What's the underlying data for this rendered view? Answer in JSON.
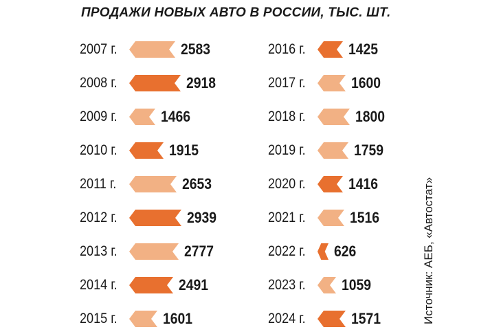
{
  "chart_data": {
    "type": "bar",
    "title": "ПРОДАЖИ НОВЫХ АВТО В РОССИИ, ТЫС. ШТ.",
    "source": "Источник: АЕБ, «Автостат»",
    "colors": {
      "high": "#e8702f",
      "low": "#f2b184"
    },
    "categories": [
      "2007 г.",
      "2008 г.",
      "2009 г.",
      "2010 г.",
      "2011 г.",
      "2012 г.",
      "2013 г.",
      "2014 г.",
      "2015 г.",
      "2016 г.",
      "2017 г.",
      "2018 г.",
      "2019 г.",
      "2020 г.",
      "2021 г.",
      "2022 г.",
      "2023 г.",
      "2024 г."
    ],
    "values": [
      2583,
      2918,
      1466,
      1915,
      2653,
      2939,
      2777,
      2491,
      1601,
      1425,
      1600,
      1800,
      1759,
      1416,
      1516,
      626,
      1059,
      1571
    ],
    "shades": [
      "low",
      "high",
      "low",
      "high",
      "low",
      "high",
      "low",
      "high",
      "low",
      "high",
      "low",
      "low",
      "low",
      "high",
      "low",
      "high",
      "low",
      "high"
    ],
    "labels": [
      "2583",
      "2918",
      "1466",
      "1915",
      "2653",
      "2939",
      "2777",
      "2491",
      "1601",
      "1425",
      "1600",
      "1800",
      "1759",
      "1416",
      "1516",
      "626",
      "1059",
      "1571"
    ]
  }
}
